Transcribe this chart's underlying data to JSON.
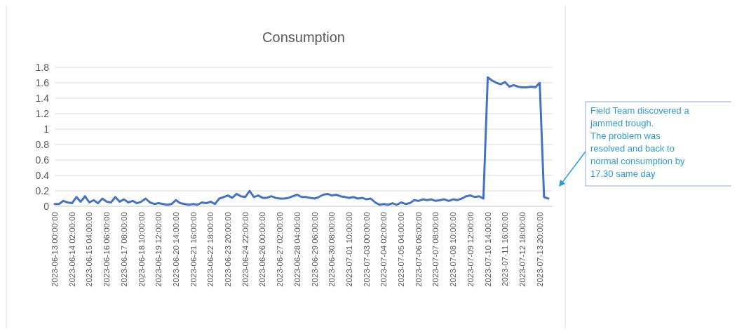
{
  "chart_data": {
    "type": "line",
    "title": "Consumption",
    "categories": [
      "2023-06-13 00:00:00",
      null,
      null,
      null,
      "2023-06-14 02:00:00",
      null,
      null,
      null,
      "2023-06-15 04:00:00",
      null,
      null,
      null,
      "2023-06-16 06:00:00",
      null,
      null,
      null,
      "2023-06-17 08:00:00",
      null,
      null,
      null,
      "2023-06-18 10:00:00",
      null,
      null,
      null,
      "2023-06-19 12:00:00",
      null,
      null,
      null,
      "2023-06-20 14:00:00",
      null,
      null,
      null,
      "2023-06-21 16:00:00",
      null,
      null,
      null,
      "2023-06-22 18:00:00",
      null,
      null,
      null,
      "2023-06-23 20:00:00",
      null,
      null,
      null,
      "2023-06-24 22:00:00",
      null,
      null,
      null,
      "2023-06-26 00:00:00",
      null,
      null,
      null,
      "2023-06-27 02:00:00",
      null,
      null,
      null,
      "2023-06-28 04:00:00",
      null,
      null,
      null,
      "2023-06-29 06:00:00",
      null,
      null,
      null,
      "2023-06-30 08:00:00",
      null,
      null,
      null,
      "2023-07-01 10:00:00",
      null,
      null,
      null,
      "2023-07-03 00:00:00",
      null,
      null,
      null,
      "2023-07-04 02:00:00",
      null,
      null,
      null,
      "2023-07-05 04:00:00",
      null,
      null,
      null,
      "2023-07-06 06:00:00",
      null,
      null,
      null,
      "2023-07-07 08:00:00",
      null,
      null,
      null,
      "2023-07-08 10:00:00",
      null,
      null,
      null,
      "2023-07-09 12:00:00",
      null,
      null,
      null,
      "2023-07-10 14:00:00",
      null,
      null,
      null,
      "2023-07-11 16:00:00",
      null,
      null,
      null,
      "2023-07-12 18:00:00",
      null,
      null,
      null,
      "2023-07-13 20:00:00",
      null,
      null
    ],
    "series": [
      {
        "color": "#4472c4",
        "values": [
          0.03,
          0.03,
          0.07,
          0.05,
          0.04,
          0.12,
          0.06,
          0.13,
          0.05,
          0.08,
          0.04,
          0.1,
          0.06,
          0.05,
          0.12,
          0.06,
          0.09,
          0.05,
          0.07,
          0.04,
          0.06,
          0.1,
          0.05,
          0.03,
          0.04,
          0.03,
          0.02,
          0.03,
          0.08,
          0.04,
          0.03,
          0.02,
          0.03,
          0.02,
          0.05,
          0.04,
          0.06,
          0.03,
          0.1,
          0.12,
          0.14,
          0.11,
          0.16,
          0.13,
          0.12,
          0.2,
          0.12,
          0.14,
          0.11,
          0.11,
          0.13,
          0.11,
          0.1,
          0.1,
          0.11,
          0.13,
          0.15,
          0.12,
          0.12,
          0.11,
          0.1,
          0.12,
          0.15,
          0.16,
          0.14,
          0.15,
          0.13,
          0.12,
          0.11,
          0.12,
          0.1,
          0.11,
          0.09,
          0.1,
          0.05,
          0.02,
          0.03,
          0.02,
          0.04,
          0.02,
          0.05,
          0.03,
          0.04,
          0.08,
          0.07,
          0.09,
          0.08,
          0.09,
          0.07,
          0.08,
          0.09,
          0.07,
          0.09,
          0.08,
          0.1,
          0.13,
          0.14,
          0.12,
          0.13,
          0.1,
          1.67,
          1.63,
          1.6,
          1.58,
          1.61,
          1.55,
          1.57,
          1.55,
          1.54,
          1.54,
          1.55,
          1.54,
          1.6,
          0.12,
          0.1
        ]
      }
    ],
    "ylim": [
      0,
      1.8
    ],
    "yticks": [
      0,
      0.2,
      0.4,
      0.6,
      0.8,
      1,
      1.2,
      1.4,
      1.6,
      1.8
    ],
    "grid": "y",
    "marker": "none",
    "line_style": "solid",
    "annotations": [
      "Field Team discovered a\njammed trough.\nThe problem was\nresolved and back to\nnormal consumption by\n17.30 same day"
    ]
  }
}
